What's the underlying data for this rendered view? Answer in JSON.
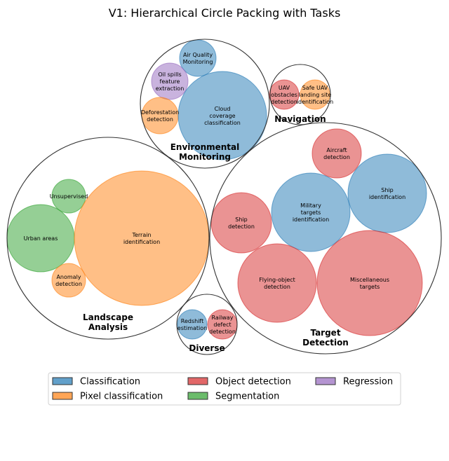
{
  "title": "V1: Hierarchical Circle Packing with Tasks",
  "colors": {
    "Classification": "#1f77b4",
    "Pixel classification": "#ff7f0e",
    "Object detection": "#d62728",
    "Segmentation": "#2ca02c",
    "Regression": "#9467bd"
  },
  "legend": [
    {
      "label": "Classification",
      "category": "Classification"
    },
    {
      "label": "Pixel classification",
      "category": "Pixel classification"
    },
    {
      "label": "Object detection",
      "category": "Object detection"
    },
    {
      "label": "Segmentation",
      "category": "Segmentation"
    },
    {
      "label": "Regression",
      "category": "Regression"
    }
  ],
  "groups": [
    {
      "id": "environmental",
      "label": "Environmental\nMonitoring",
      "tasks": [
        {
          "label": "Air Quality\nMonitoring",
          "category": "Classification"
        },
        {
          "label": "Oil spills\nfeature\nextraction",
          "category": "Regression"
        },
        {
          "label": "Deforestation\ndetection",
          "category": "Pixel classification"
        },
        {
          "label": "Cloud\ncoverage\nclassification",
          "category": "Classification"
        }
      ]
    },
    {
      "id": "navigation",
      "label": "Navigation",
      "tasks": [
        {
          "label": "UAV\nobstacles\ndetection",
          "category": "Object detection"
        },
        {
          "label": "Safe UAV\nlanding site\nidentification",
          "category": "Pixel classification"
        }
      ]
    },
    {
      "id": "landscape",
      "label": "Landscape\nAnalysis",
      "tasks": [
        {
          "label": "Unsupervised",
          "category": "Segmentation"
        },
        {
          "label": "Urban areas",
          "category": "Segmentation"
        },
        {
          "label": "Anomaly\ndetection",
          "category": "Pixel classification"
        },
        {
          "label": "Terrain\nidentification",
          "category": "Pixel classification"
        }
      ]
    },
    {
      "id": "target",
      "label": "Target\nDetection",
      "tasks": [
        {
          "label": "Aircraft\ndetection",
          "category": "Object detection"
        },
        {
          "label": "Ship\nidentification",
          "category": "Classification"
        },
        {
          "label": "Military\ntargets\nidentification",
          "category": "Classification"
        },
        {
          "label": "Ship\ndetection",
          "category": "Object detection"
        },
        {
          "label": "Flying-object\ndetection",
          "category": "Object detection"
        },
        {
          "label": "Miscellaneous\ntargets",
          "category": "Object detection"
        }
      ]
    },
    {
      "id": "diverse",
      "label": "Diverse",
      "tasks": [
        {
          "label": "Redshift\nestimation",
          "category": "Classification"
        },
        {
          "label": "Railway\ndefect\ndetection",
          "category": "Object detection"
        }
      ]
    }
  ]
}
